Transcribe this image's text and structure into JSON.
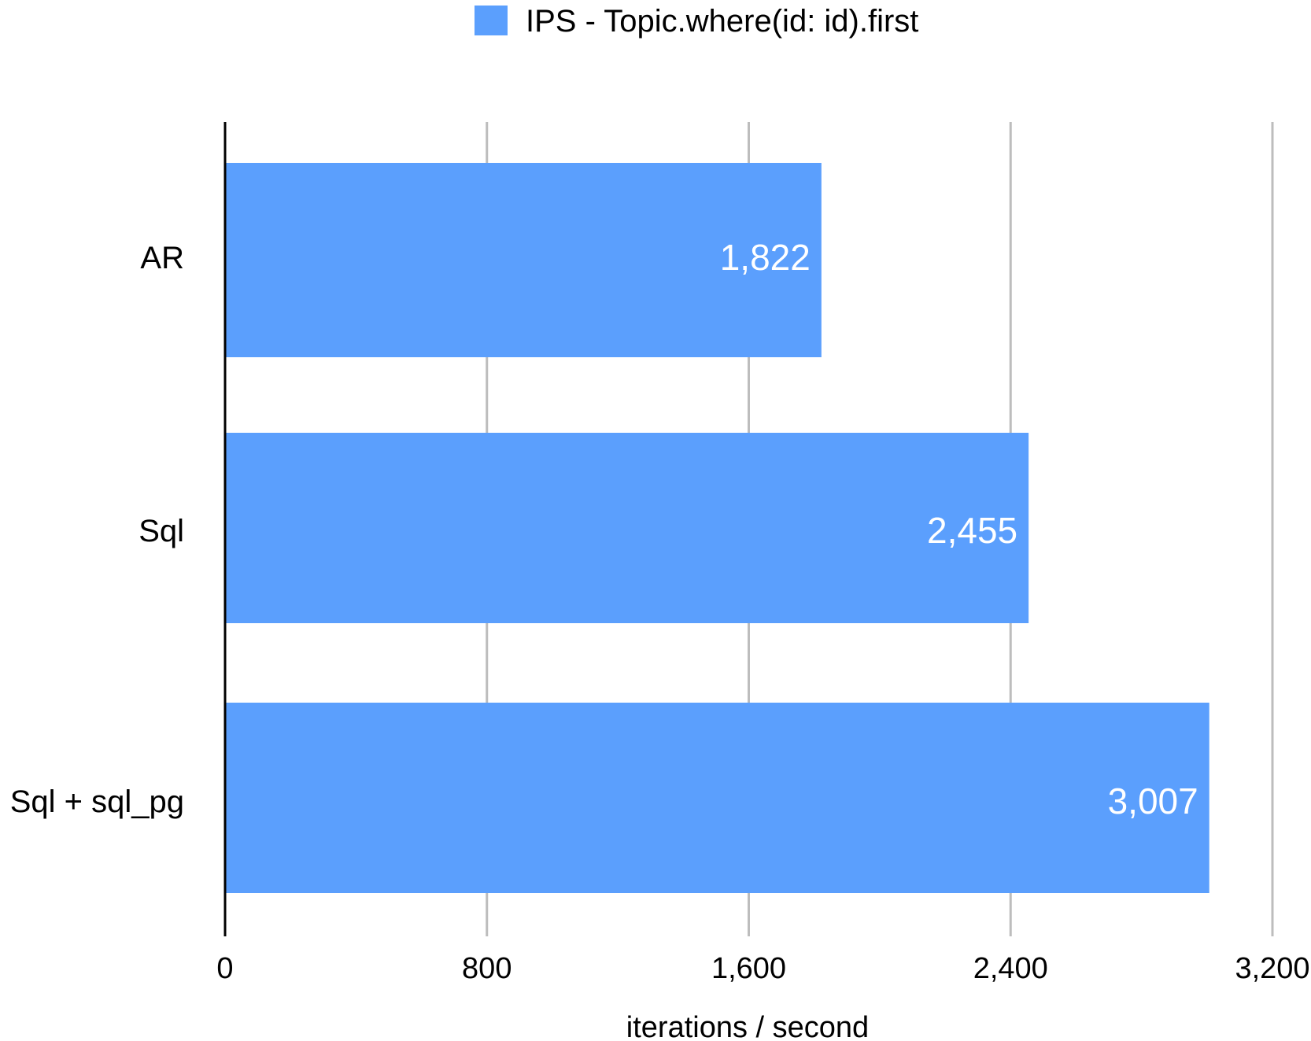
{
  "chart_data": {
    "type": "bar",
    "orientation": "horizontal",
    "categories": [
      "AR",
      "Sql",
      "Sql + sql_pg"
    ],
    "series": [
      {
        "name": "IPS - Topic.where(id: id).first",
        "values": [
          1822,
          2455,
          3007
        ],
        "data_labels": [
          "1,822",
          "2,455",
          "3,007"
        ],
        "color": "#5b9ffd"
      }
    ],
    "title": "",
    "xlabel": "iterations / second",
    "ylabel": "",
    "xlim": [
      0,
      3200
    ],
    "x_ticks": [
      0,
      800,
      1600,
      2400,
      3200
    ],
    "x_tick_labels": [
      "0",
      "800",
      "1,600",
      "2,400",
      "3,200"
    ],
    "grid": "vertical",
    "legend_position": "top-center",
    "gridline_color": "#bdbdbd",
    "axis_color": "#000000"
  }
}
